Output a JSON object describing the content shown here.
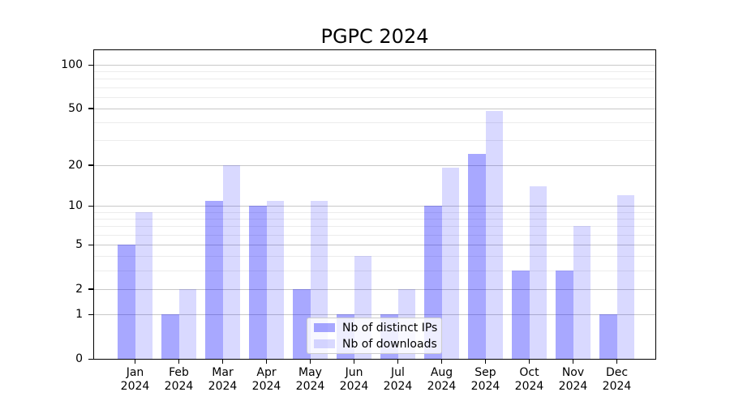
{
  "chart_data": {
    "type": "bar",
    "title": "PGPC 2024",
    "categories": [
      "Jan 2024",
      "Feb 2024",
      "Mar 2024",
      "Apr 2024",
      "May 2024",
      "Jun 2024",
      "Jul 2024",
      "Aug 2024",
      "Sep 2024",
      "Oct 2024",
      "Nov 2024",
      "Dec 2024"
    ],
    "series": [
      {
        "name": "Nb of distinct IPs",
        "color": "#0000ff",
        "alpha": 0.34,
        "values": [
          5,
          1,
          11,
          10,
          2,
          1,
          1,
          10,
          24,
          3,
          3,
          1
        ]
      },
      {
        "name": "Nb of downloads",
        "color": "#0000ff",
        "alpha": 0.15,
        "values": [
          9,
          2,
          20,
          11,
          11,
          4,
          2,
          19,
          48,
          14,
          7,
          12
        ]
      }
    ],
    "yscale": "log1p",
    "ylim": [
      0,
      126
    ],
    "y_major_ticks": [
      0,
      1,
      2,
      5,
      10,
      20,
      50,
      100
    ],
    "y_minor_gridlines": [
      3,
      4,
      6,
      7,
      8,
      9,
      30,
      40,
      60,
      70,
      80,
      90
    ],
    "xlabel": "",
    "ylabel": "",
    "grid": true,
    "legend_position": "lower-center",
    "colors": {
      "major_grid": "#c8c8c8",
      "minor_grid": "#ececec",
      "axis": "#000000",
      "legend_border": "#cccccc",
      "background": "#ffffff"
    }
  }
}
